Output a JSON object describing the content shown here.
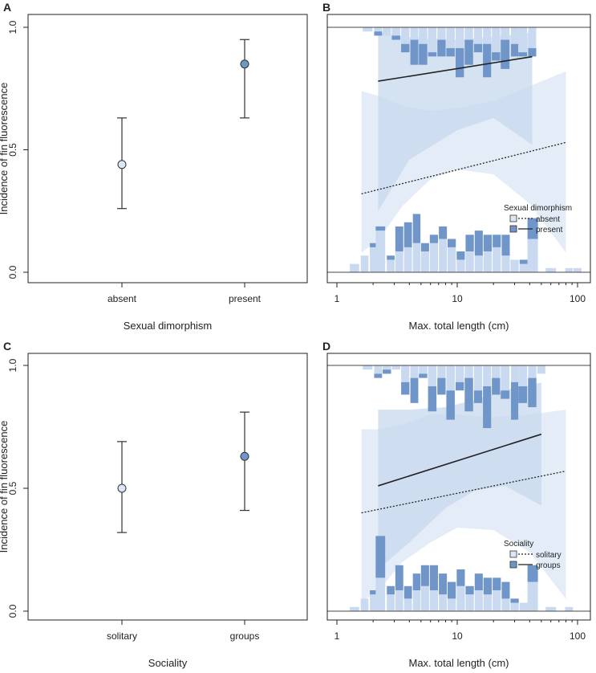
{
  "colors": {
    "absent_fill": "#dbe7f5",
    "present_fill": "#6f95c9",
    "band_light": "#dae6f4",
    "band_dark": "#c7d8ee",
    "hist_light": "#c9daf0",
    "hist_dark": "#6f95c9",
    "axis": "#222222"
  },
  "chart_data": [
    {
      "panel": "A",
      "type": "scatter",
      "ylabel": "Incidence of fin fluorescence",
      "xlabel": "Sexual dimorphism",
      "categories": [
        "absent",
        "present"
      ],
      "points": [
        {
          "category": "absent",
          "value": 0.44,
          "lower": 0.26,
          "upper": 0.63,
          "group": "light"
        },
        {
          "category": "present",
          "value": 0.85,
          "lower": 0.63,
          "upper": 0.95,
          "group": "dark"
        }
      ],
      "ylim": [
        -0.01,
        1.01
      ],
      "yticks": [
        "0.0",
        "0.5",
        "1.0"
      ]
    },
    {
      "panel": "B",
      "type": "line",
      "xlabel": "Max. total length (cm)",
      "xscale": "log",
      "xlim": [
        1,
        110
      ],
      "xticks": [
        "1",
        "10",
        "100"
      ],
      "ylim": [
        -0.01,
        1.01
      ],
      "legend": {
        "title": "Sexual dimorphism",
        "position": "right",
        "entries": [
          "absent",
          "present"
        ]
      },
      "series": [
        {
          "name": "absent",
          "style": "dotted",
          "x": [
            1.6,
            80
          ],
          "y": [
            0.32,
            0.53
          ],
          "band_lower": [
            0.08,
            0.13,
            0.27,
            0.38,
            0.42,
            0.4,
            0.28,
            0.08
          ],
          "band_upper": [
            0.74,
            0.72,
            0.68,
            0.66,
            0.67,
            0.7,
            0.76,
            0.82
          ],
          "band_x": [
            1.6,
            2.2,
            3.5,
            6,
            10,
            20,
            40,
            80
          ]
        },
        {
          "name": "present",
          "style": "solid",
          "x": [
            2.2,
            42
          ],
          "y": [
            0.78,
            0.88
          ],
          "band_lower": [
            0.25,
            0.46,
            0.58,
            0.63,
            0.52
          ],
          "band_upper": [
            0.98,
            0.96,
            0.95,
            0.96,
            0.98
          ],
          "band_x": [
            2.2,
            4,
            10,
            20,
            42
          ]
        }
      ],
      "hist_top": {
        "x": [
          1.8,
          2.2,
          2.6,
          3.1,
          3.7,
          4.4,
          5.2,
          6.2,
          7.4,
          8.8,
          10.5,
          12.5,
          14.9,
          17.7,
          21,
          25,
          30,
          35,
          42
        ],
        "light": [
          0.01,
          0.01,
          0.02,
          0.02,
          0.04,
          0.03,
          0.04,
          0.06,
          0.03,
          0.05,
          0.05,
          0.03,
          0.04,
          0.04,
          0.06,
          0.03,
          0.04,
          0.06,
          0.05
        ],
        "dark": [
          0,
          0.01,
          0,
          0.01,
          0.02,
          0.06,
          0.05,
          0.01,
          0.04,
          0.02,
          0.07,
          0.06,
          0.02,
          0.08,
          0.02,
          0.07,
          0.03,
          0.01,
          0.02
        ]
      },
      "hist_bottom": {
        "x": [
          1.4,
          1.7,
          2.0,
          2.3,
          2.8,
          3.3,
          3.9,
          4.6,
          5.4,
          6.4,
          7.6,
          9.0,
          10.7,
          12.7,
          15.1,
          17.9,
          21.3,
          25.3,
          30,
          35.7,
          42.4,
          60,
          85,
          100
        ],
        "light": [
          0.02,
          0.04,
          0.06,
          0.1,
          0.03,
          0.05,
          0.06,
          0.07,
          0.05,
          0.07,
          0.08,
          0.06,
          0.03,
          0.05,
          0.04,
          0.05,
          0.06,
          0.04,
          0.03,
          0.02,
          0.08,
          0.01,
          0.01,
          0.01
        ],
        "dark": [
          0,
          0,
          0.01,
          0.01,
          0.01,
          0.06,
          0.06,
          0.07,
          0.02,
          0.02,
          0.03,
          0.02,
          0.02,
          0.04,
          0.06,
          0.04,
          0.03,
          0.05,
          0,
          0.01,
          0.05,
          0,
          0,
          0
        ]
      }
    },
    {
      "panel": "C",
      "type": "scatter",
      "ylabel": "Incidence of fin fluorescence",
      "xlabel": "Sociality",
      "categories": [
        "solitary",
        "groups"
      ],
      "points": [
        {
          "category": "solitary",
          "value": 0.5,
          "lower": 0.32,
          "upper": 0.69,
          "group": "light"
        },
        {
          "category": "groups",
          "value": 0.63,
          "lower": 0.41,
          "upper": 0.81,
          "group": "dark"
        }
      ],
      "ylim": [
        -0.01,
        1.01
      ],
      "yticks": [
        "0.0",
        "0.5",
        "1.0"
      ]
    },
    {
      "panel": "D",
      "type": "line",
      "xlabel": "Max. total length (cm)",
      "xscale": "log",
      "xlim": [
        1,
        110
      ],
      "xticks": [
        "1",
        "10",
        "100"
      ],
      "ylim": [
        -0.01,
        1.01
      ],
      "legend": {
        "title": "Sociality",
        "position": "right",
        "entries": [
          "solitary",
          "groups"
        ]
      },
      "series": [
        {
          "name": "solitary",
          "style": "dotted",
          "x": [
            1.6,
            80
          ],
          "y": [
            0.4,
            0.57
          ],
          "band_lower": [
            0.04,
            0.08,
            0.2,
            0.28,
            0.34,
            0.33,
            0.24,
            0.05
          ],
          "band_upper": [
            0.74,
            0.74,
            0.76,
            0.8,
            0.8,
            0.79,
            0.8,
            0.82
          ],
          "band_x": [
            1.6,
            2.2,
            3.5,
            6,
            10,
            20,
            40,
            80
          ]
        },
        {
          "name": "groups",
          "style": "solid",
          "x": [
            2.2,
            50
          ],
          "y": [
            0.51,
            0.72
          ],
          "band_lower": [
            0.17,
            0.28,
            0.42,
            0.49,
            0.51,
            0.43
          ],
          "band_upper": [
            0.82,
            0.82,
            0.83,
            0.86,
            0.9,
            0.93
          ],
          "band_x": [
            2.2,
            4,
            8,
            14,
            25,
            50
          ]
        }
      ],
      "hist_top": {
        "x": [
          1.8,
          2.2,
          2.6,
          3.1,
          3.7,
          4.4,
          5.2,
          6.2,
          7.4,
          8.8,
          10.5,
          12.5,
          14.9,
          17.7,
          21,
          25,
          30,
          35,
          42,
          50
        ],
        "light": [
          0.01,
          0.02,
          0.01,
          0.01,
          0.04,
          0.03,
          0.02,
          0.05,
          0.03,
          0.06,
          0.04,
          0.03,
          0.06,
          0.05,
          0.03,
          0.06,
          0.04,
          0.05,
          0.03,
          0.02
        ],
        "dark": [
          0,
          0.01,
          0.01,
          0,
          0.03,
          0.06,
          0.01,
          0.06,
          0.04,
          0.07,
          0.02,
          0.08,
          0.03,
          0.1,
          0.04,
          0.02,
          0.09,
          0.04,
          0.07,
          0
        ]
      },
      "hist_bottom": {
        "x": [
          1.4,
          1.7,
          2.0,
          2.3,
          2.8,
          3.3,
          3.9,
          4.6,
          5.4,
          6.4,
          7.6,
          9.0,
          10.7,
          12.7,
          15.1,
          17.9,
          21.3,
          25.3,
          30,
          35.7,
          42.4,
          60,
          85
        ],
        "light": [
          0.01,
          0.03,
          0.04,
          0.08,
          0.04,
          0.05,
          0.03,
          0.05,
          0.06,
          0.05,
          0.04,
          0.03,
          0.06,
          0.04,
          0.05,
          0.04,
          0.05,
          0.03,
          0.02,
          0.02,
          0.07,
          0.01,
          0.01
        ],
        "dark": [
          0,
          0,
          0.01,
          0.1,
          0.02,
          0.06,
          0.03,
          0.04,
          0.05,
          0.06,
          0.05,
          0.04,
          0.04,
          0.02,
          0.04,
          0.04,
          0.03,
          0.04,
          0.01,
          0,
          0.04,
          0,
          0
        ]
      }
    }
  ]
}
